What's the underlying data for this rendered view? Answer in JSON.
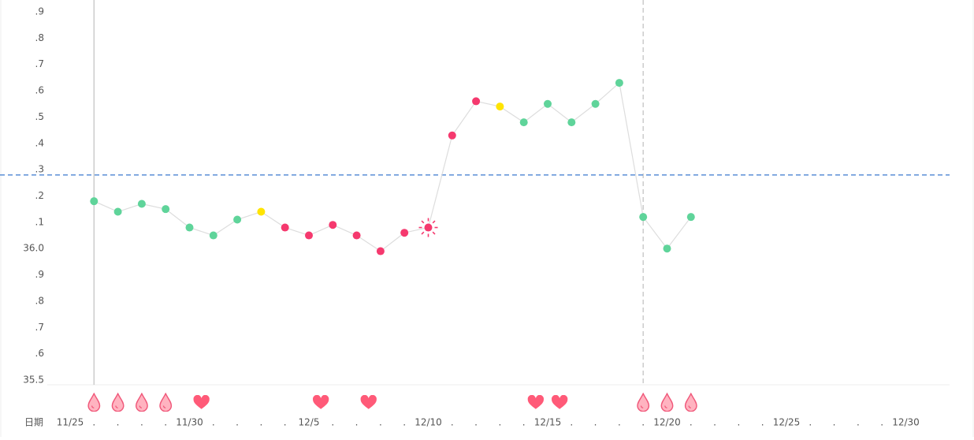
{
  "chart_data": {
    "type": "line",
    "x_label": "日期",
    "categories": [
      "11/25",
      ".",
      ".",
      ".",
      ".",
      "11/30",
      ".",
      ".",
      ".",
      ".",
      "12/5",
      ".",
      ".",
      ".",
      ".",
      "12/10",
      ".",
      ".",
      ".",
      ".",
      "12/15",
      ".",
      ".",
      ".",
      ".",
      "12/20",
      ".",
      ".",
      ".",
      ".",
      "12/25",
      ".",
      ".",
      ".",
      ".",
      "12/30"
    ],
    "values": [
      null,
      36.18,
      36.14,
      36.17,
      36.15,
      36.08,
      36.05,
      36.11,
      36.14,
      36.08,
      36.05,
      36.09,
      36.05,
      35.99,
      36.06,
      36.08,
      36.43,
      36.56,
      36.54,
      36.48,
      36.55,
      36.48,
      36.55,
      36.63,
      36.12,
      36.0,
      36.12,
      null,
      null,
      null,
      null,
      null,
      null,
      null,
      null,
      null
    ],
    "point_colors": [
      null,
      "#5fd49a",
      "#5fd49a",
      "#5fd49a",
      "#5fd49a",
      "#5fd49a",
      "#5fd49a",
      "#5fd49a",
      "#ffe400",
      "#f5396e",
      "#f5396e",
      "#f5396e",
      "#f5396e",
      "#f5396e",
      "#f5396e",
      "#f5396e",
      "#f5396e",
      "#f5396e",
      "#ffe400",
      "#5fd49a",
      "#5fd49a",
      "#5fd49a",
      "#5fd49a",
      "#5fd49a",
      "#5fd49a",
      "#5fd49a",
      "#5fd49a",
      null,
      null,
      null,
      null,
      null,
      null,
      null,
      null,
      null
    ],
    "line_color": "#dddddd",
    "reference_line": 36.28,
    "reference_color": "#5b8fd6",
    "ylim": [
      35.5,
      36.9
    ],
    "yticks": [
      35.5,
      {
        "value": 35.6,
        "label": ".6"
      },
      {
        "value": 35.7,
        "label": ".7"
      },
      {
        "value": 35.8,
        "label": ".8"
      },
      {
        "value": 35.9,
        "label": ".9"
      },
      {
        "value": 36.0,
        "label": "36.0"
      },
      {
        "value": 36.1,
        "label": ".1"
      },
      {
        "value": 36.2,
        "label": ".2"
      },
      {
        "value": 36.3,
        "label": ".3"
      },
      {
        "value": 36.4,
        "label": ".4"
      },
      {
        "value": 36.5,
        "label": ".5"
      },
      {
        "value": 36.6,
        "label": ".6"
      },
      {
        "value": 36.7,
        "label": ".7"
      },
      {
        "value": 36.8,
        "label": ".8"
      },
      {
        "value": 36.9,
        "label": ".9"
      }
    ]
  }
}
